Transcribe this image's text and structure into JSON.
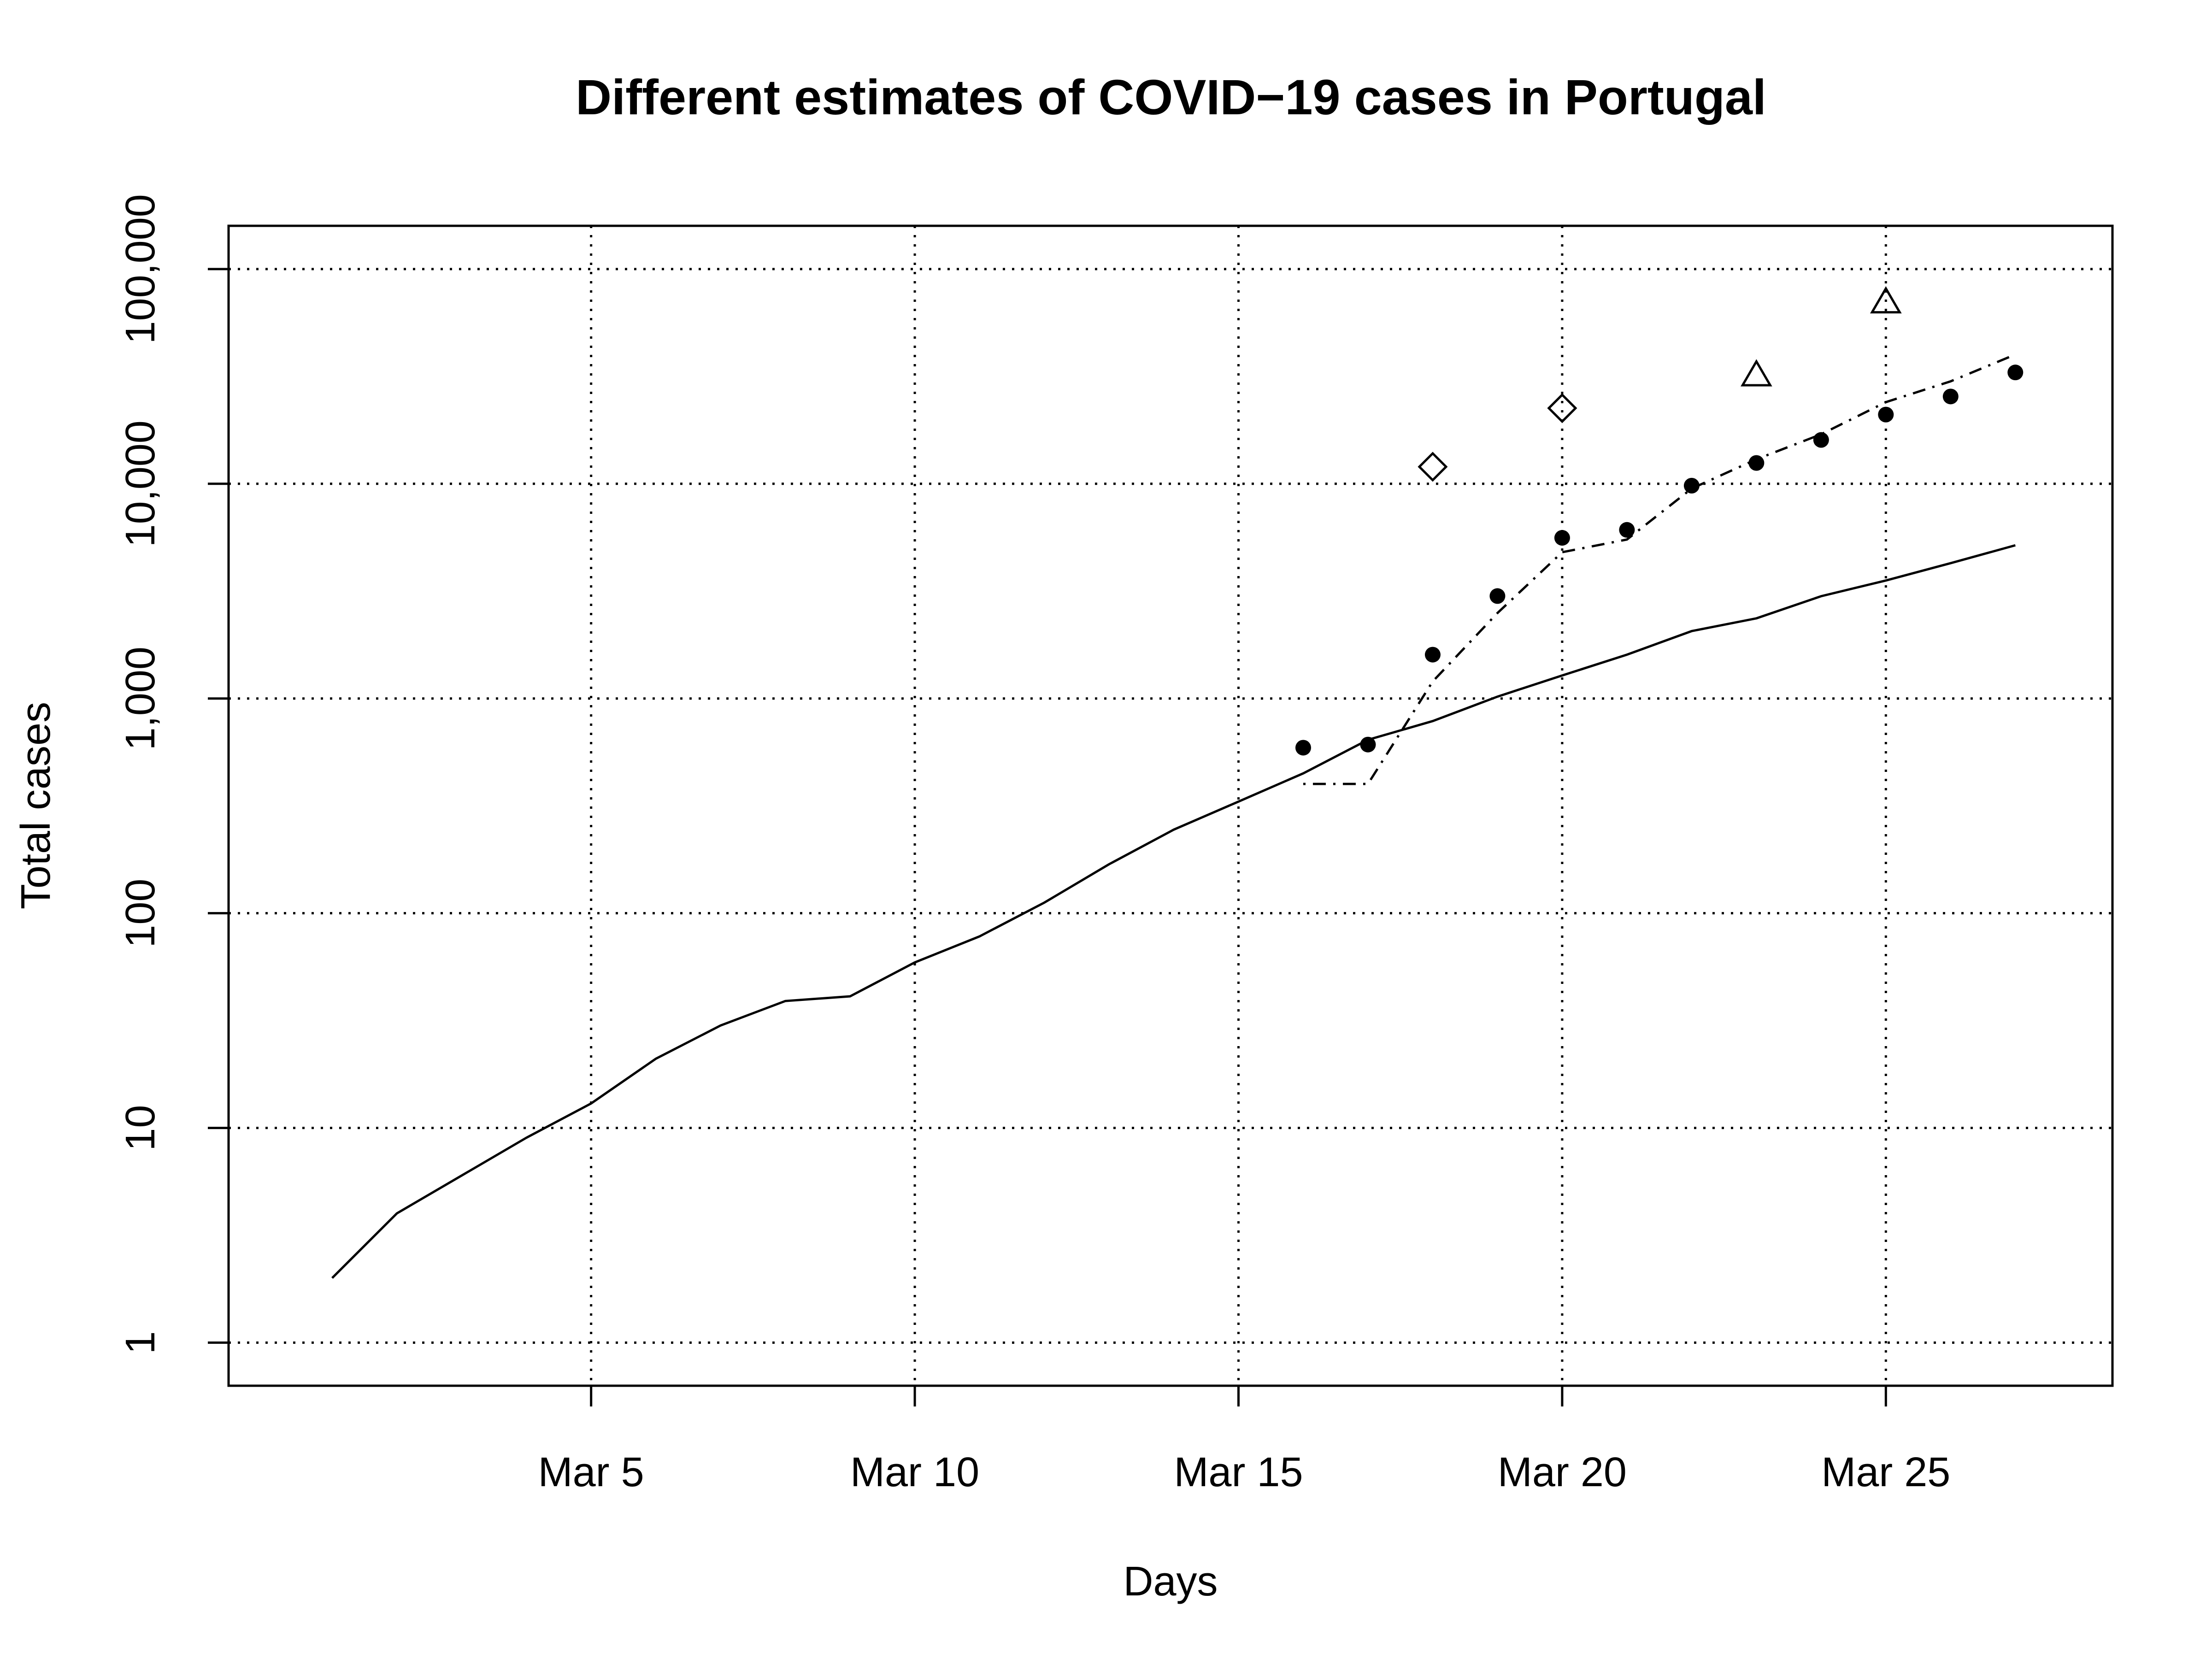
{
  "chart_data": {
    "type": "line",
    "title": "Different estimates of COVID−19 cases in Portugal",
    "xlabel": "Days",
    "ylabel": "Total cases",
    "y_scale": "log",
    "grid": true,
    "x_ticks": [
      {
        "day": 5,
        "label": "Mar 5"
      },
      {
        "day": 10,
        "label": "Mar 10"
      },
      {
        "day": 15,
        "label": "Mar 15"
      },
      {
        "day": 20,
        "label": "Mar 20"
      },
      {
        "day": 25,
        "label": "Mar 25"
      }
    ],
    "y_ticks": [
      {
        "value": 1,
        "label": "1"
      },
      {
        "value": 10,
        "label": "10"
      },
      {
        "value": 100,
        "label": "100"
      },
      {
        "value": 1000,
        "label": "1,000"
      },
      {
        "value": 10000,
        "label": "10,000"
      },
      {
        "value": 100000,
        "label": "100,000"
      }
    ],
    "xlim": [
      -0.6,
      28.5
    ],
    "ylim": [
      0.63,
      159000
    ],
    "series": [
      {
        "style": "solid line",
        "points": [
          [
            1,
            2
          ],
          [
            2,
            4
          ],
          [
            3,
            6
          ],
          [
            4,
            9
          ],
          [
            5,
            13
          ],
          [
            6,
            21
          ],
          [
            7,
            30
          ],
          [
            8,
            39
          ],
          [
            9,
            41
          ],
          [
            10,
            59
          ],
          [
            11,
            78
          ],
          [
            12,
            112
          ],
          [
            13,
            169
          ],
          [
            14,
            245
          ],
          [
            15,
            331
          ],
          [
            16,
            448
          ],
          [
            17,
            642
          ],
          [
            18,
            785
          ],
          [
            19,
            1020
          ],
          [
            20,
            1280
          ],
          [
            21,
            1600
          ],
          [
            22,
            2060
          ],
          [
            23,
            2362
          ],
          [
            24,
            2995
          ],
          [
            25,
            3544
          ],
          [
            26,
            4268
          ],
          [
            27,
            5170
          ]
        ]
      },
      {
        "style": "dot-dash line",
        "points": [
          [
            16,
            400
          ],
          [
            17,
            400
          ],
          [
            18,
            1200
          ],
          [
            19,
            2500
          ],
          [
            20,
            4800
          ],
          [
            21,
            5500
          ],
          [
            22,
            9500
          ],
          [
            23,
            13000
          ],
          [
            24,
            17000
          ],
          [
            25,
            24000
          ],
          [
            26,
            30000
          ],
          [
            27,
            40000
          ]
        ]
      },
      {
        "style": "filled circles",
        "points": [
          [
            16,
            590
          ],
          [
            17,
            610
          ],
          [
            18,
            1600
          ],
          [
            19,
            3000
          ],
          [
            20,
            5600
          ],
          [
            21,
            6100
          ],
          [
            22,
            9800
          ],
          [
            23,
            12500
          ],
          [
            24,
            16000
          ],
          [
            25,
            21000
          ],
          [
            26,
            25500
          ],
          [
            27,
            33000
          ]
        ]
      },
      {
        "style": "open diamonds",
        "points": [
          [
            18,
            12000
          ],
          [
            20,
            22500
          ]
        ]
      },
      {
        "style": "open triangles",
        "points": [
          [
            23,
            32000
          ],
          [
            25,
            70000
          ]
        ]
      }
    ]
  }
}
